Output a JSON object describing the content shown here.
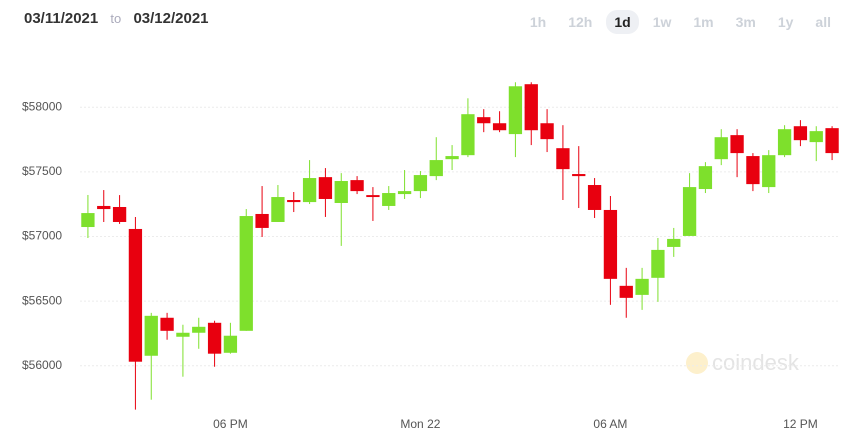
{
  "header": {
    "from": "03/11/2021",
    "sep": "to",
    "to": "03/12/2021",
    "ranges": [
      {
        "label": "1h",
        "selected": false
      },
      {
        "label": "12h",
        "selected": false
      },
      {
        "label": "1d",
        "selected": true
      },
      {
        "label": "1w",
        "selected": false
      },
      {
        "label": "1m",
        "selected": false
      },
      {
        "label": "3m",
        "selected": false
      },
      {
        "label": "1y",
        "selected": false
      },
      {
        "label": "all",
        "selected": false
      }
    ]
  },
  "watermark": "coindesk",
  "chart_data": {
    "type": "candlestick",
    "up_color": "#7ee02c",
    "down_color": "#e8000f",
    "grid": true,
    "ylim": [
      55580,
      58520
    ],
    "yticks": [
      {
        "value": 56000,
        "label": "$56000"
      },
      {
        "value": 56500,
        "label": "$56500"
      },
      {
        "value": 57000,
        "label": "$57000"
      },
      {
        "value": 57500,
        "label": "$57500"
      },
      {
        "value": 58000,
        "label": "$58000"
      }
    ],
    "categories": [
      null,
      null,
      null,
      null,
      null,
      null,
      null,
      null,
      null,
      "06 PM",
      null,
      null,
      null,
      null,
      null,
      null,
      null,
      null,
      null,
      null,
      null,
      "Mon 22",
      null,
      null,
      null,
      null,
      null,
      null,
      null,
      null,
      null,
      null,
      null,
      "06 AM",
      null,
      null,
      null,
      null,
      null,
      null,
      null,
      null,
      null,
      null,
      null,
      "12 PM",
      null,
      null
    ],
    "open": [
      57073,
      57236,
      57228,
      57058,
      56077,
      56371,
      56224,
      56255,
      56332,
      56100,
      56270,
      57174,
      57112,
      57282,
      57266,
      57459,
      57259,
      57436,
      57320,
      57236,
      57328,
      57351,
      57467,
      57598,
      57629,
      57923,
      57876,
      57792,
      58178,
      57876,
      57683,
      57483,
      57398,
      57205,
      56618,
      56548,
      56680,
      56919,
      57004,
      57367,
      57598,
      57784,
      57622,
      57382,
      57629,
      57853,
      57730,
      57838
    ],
    "high": [
      57321,
      57359,
      57320,
      57151,
      56409,
      56409,
      56317,
      56371,
      56348,
      56332,
      57212,
      57390,
      57398,
      57344,
      57591,
      57529,
      57490,
      57467,
      57382,
      57390,
      57514,
      57506,
      57768,
      57707,
      58069,
      57985,
      57969,
      58193,
      58193,
      57985,
      57861,
      57699,
      57452,
      57313,
      56757,
      56757,
      56988,
      57066,
      57490,
      57575,
      57830,
      57830,
      57645,
      57668,
      57861,
      57900,
      57853,
      57853
    ],
    "low": [
      56988,
      57112,
      57097,
      55660,
      55737,
      56201,
      55915,
      56131,
      55992,
      56093,
      56270,
      56996,
      57112,
      57189,
      57251,
      57151,
      56927,
      57328,
      57120,
      57205,
      57290,
      57297,
      57436,
      57514,
      57614,
      57807,
      57807,
      57614,
      57707,
      57653,
      57282,
      57220,
      57143,
      56471,
      56371,
      56432,
      56494,
      56842,
      57004,
      57336,
      57552,
      57459,
      57351,
      57336,
      57614,
      57699,
      57583,
      57591
    ],
    "close": [
      57181,
      57212,
      57112,
      56031,
      56386,
      56270,
      56255,
      56301,
      56093,
      56232,
      57158,
      57066,
      57305,
      57266,
      57452,
      57290,
      57429,
      57351,
      57305,
      57336,
      57351,
      57475,
      57591,
      57622,
      57946,
      57876,
      57822,
      58162,
      57822,
      57753,
      57521,
      57467,
      57205,
      56672,
      56525,
      56672,
      56896,
      56981,
      57382,
      57544,
      57768,
      57645,
      57405,
      57629,
      57830,
      57745,
      57815,
      57645
    ]
  }
}
